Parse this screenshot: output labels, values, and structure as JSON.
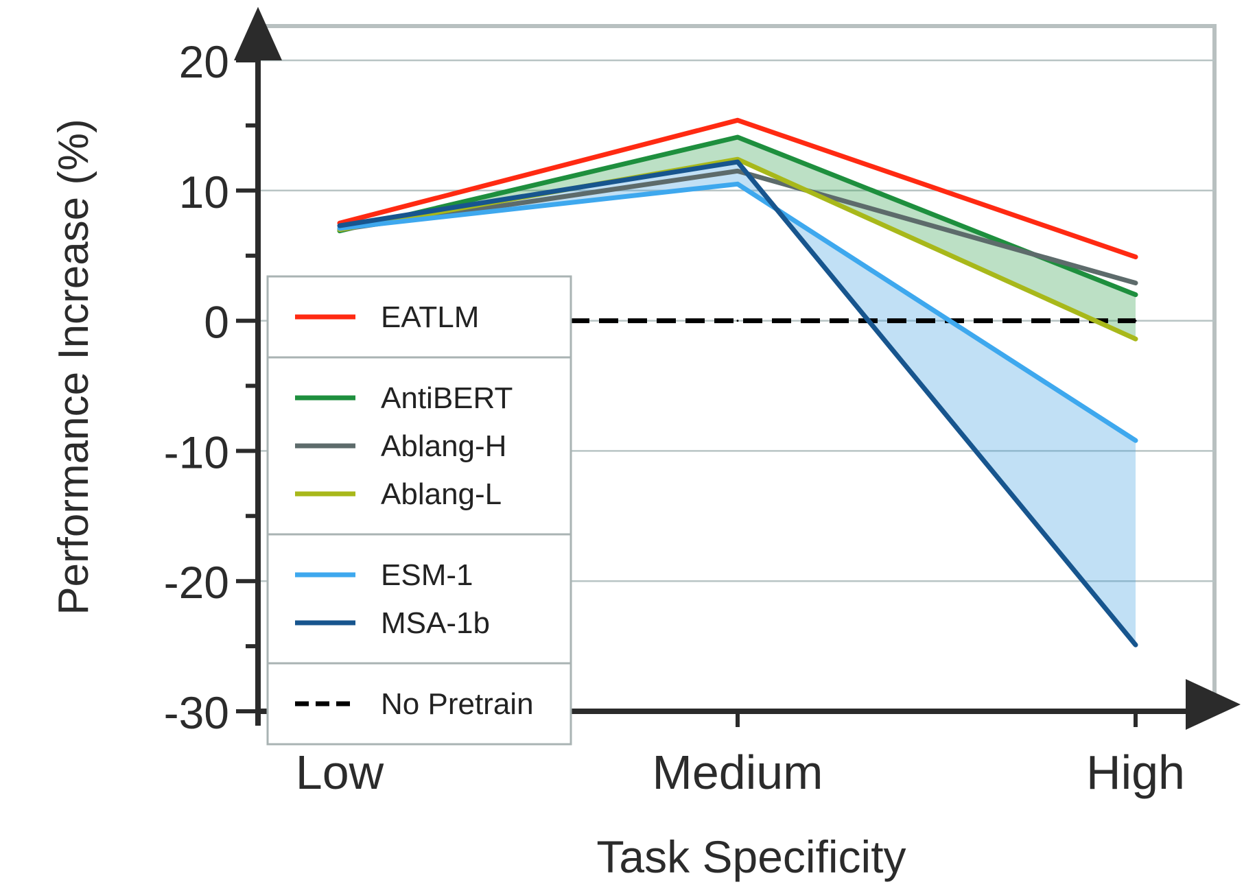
{
  "chart_data": {
    "type": "line",
    "xlabel": "Task Specificity",
    "ylabel": "Performance Increase (%)",
    "categories": [
      "Low",
      "Medium",
      "High"
    ],
    "ylim": [
      -30,
      20
    ],
    "yticks": [
      20,
      10,
      0,
      -10,
      -20,
      -30
    ],
    "grid": true,
    "legend_position": "middle-left",
    "series": [
      {
        "name": "EATLM",
        "color": "#ff2a12",
        "values": [
          7.5,
          15.4,
          4.9
        ]
      },
      {
        "name": "AntiBERT",
        "color": "#1e8f3e",
        "values": [
          6.9,
          14.1,
          2.0
        ]
      },
      {
        "name": "Ablang-H",
        "color": "#5d6b6b",
        "values": [
          7.0,
          11.5,
          2.9
        ]
      },
      {
        "name": "Ablang-L",
        "color": "#a8b81a",
        "values": [
          7.0,
          12.4,
          -1.4
        ]
      },
      {
        "name": "ESM-1",
        "color": "#3ea8ee",
        "values": [
          7.1,
          10.5,
          -9.2
        ]
      },
      {
        "name": "MSA-1b",
        "color": "#17558e",
        "values": [
          7.3,
          12.2,
          -24.9
        ]
      },
      {
        "name": "No Pretrain",
        "color": "#000000",
        "dashed": true,
        "values": [
          0,
          0,
          0
        ]
      }
    ],
    "shaded_bands": [
      {
        "series": [
          "AntiBERT",
          "Ablang-L"
        ],
        "color": "#2f9e4c"
      },
      {
        "series": [
          "ESM-1",
          "MSA-1b"
        ],
        "color": "#3f9fe0"
      }
    ],
    "legend_groups": [
      [
        "EATLM"
      ],
      [
        "AntiBERT",
        "Ablang-H",
        "Ablang-L"
      ],
      [
        "ESM-1",
        "MSA-1b"
      ],
      [
        "No Pretrain"
      ]
    ]
  }
}
